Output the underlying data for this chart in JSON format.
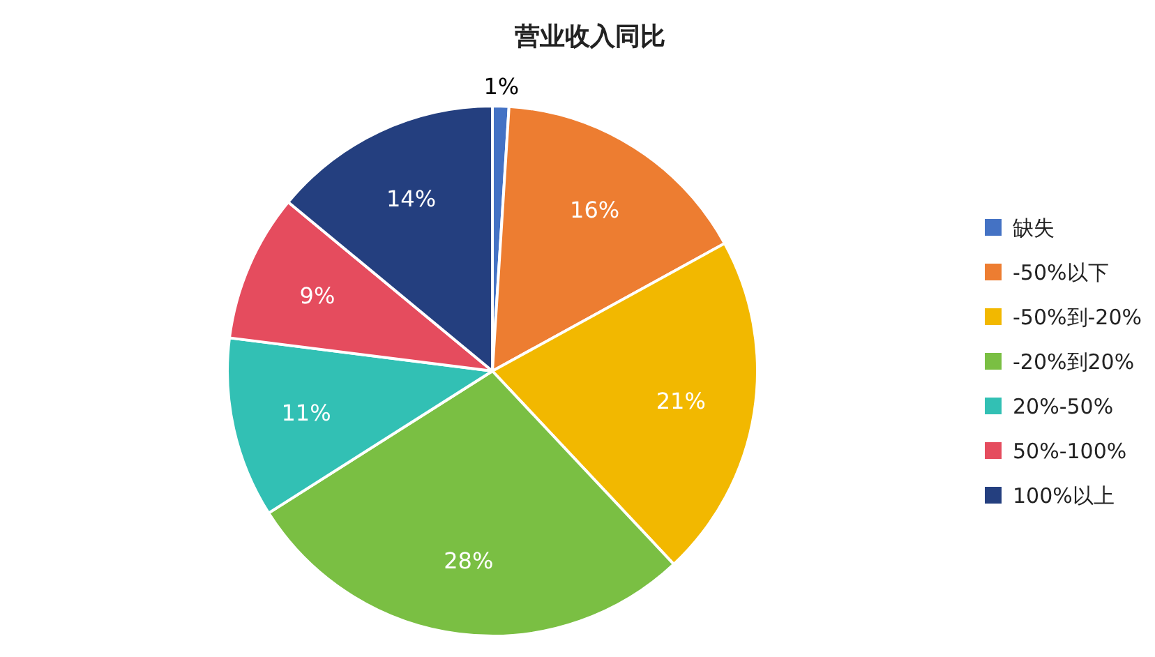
{
  "chart_data": {
    "type": "pie",
    "title": "营业收入同比",
    "categories": [
      "缺失",
      "-50%以下",
      "-50%到-20%",
      "-20%到20%",
      "20%-50%",
      "50%-100%",
      "100%以上"
    ],
    "values": [
      1,
      16,
      21,
      28,
      11,
      9,
      14
    ],
    "colors": [
      "#4472c4",
      "#ed7d31",
      "#f2b800",
      "#7abf43",
      "#32c0b4",
      "#e54c5e",
      "#243f7f"
    ],
    "value_labels": [
      "1%",
      "16%",
      "21%",
      "28%",
      "11%",
      "9%",
      "14%"
    ],
    "legend": "right"
  }
}
